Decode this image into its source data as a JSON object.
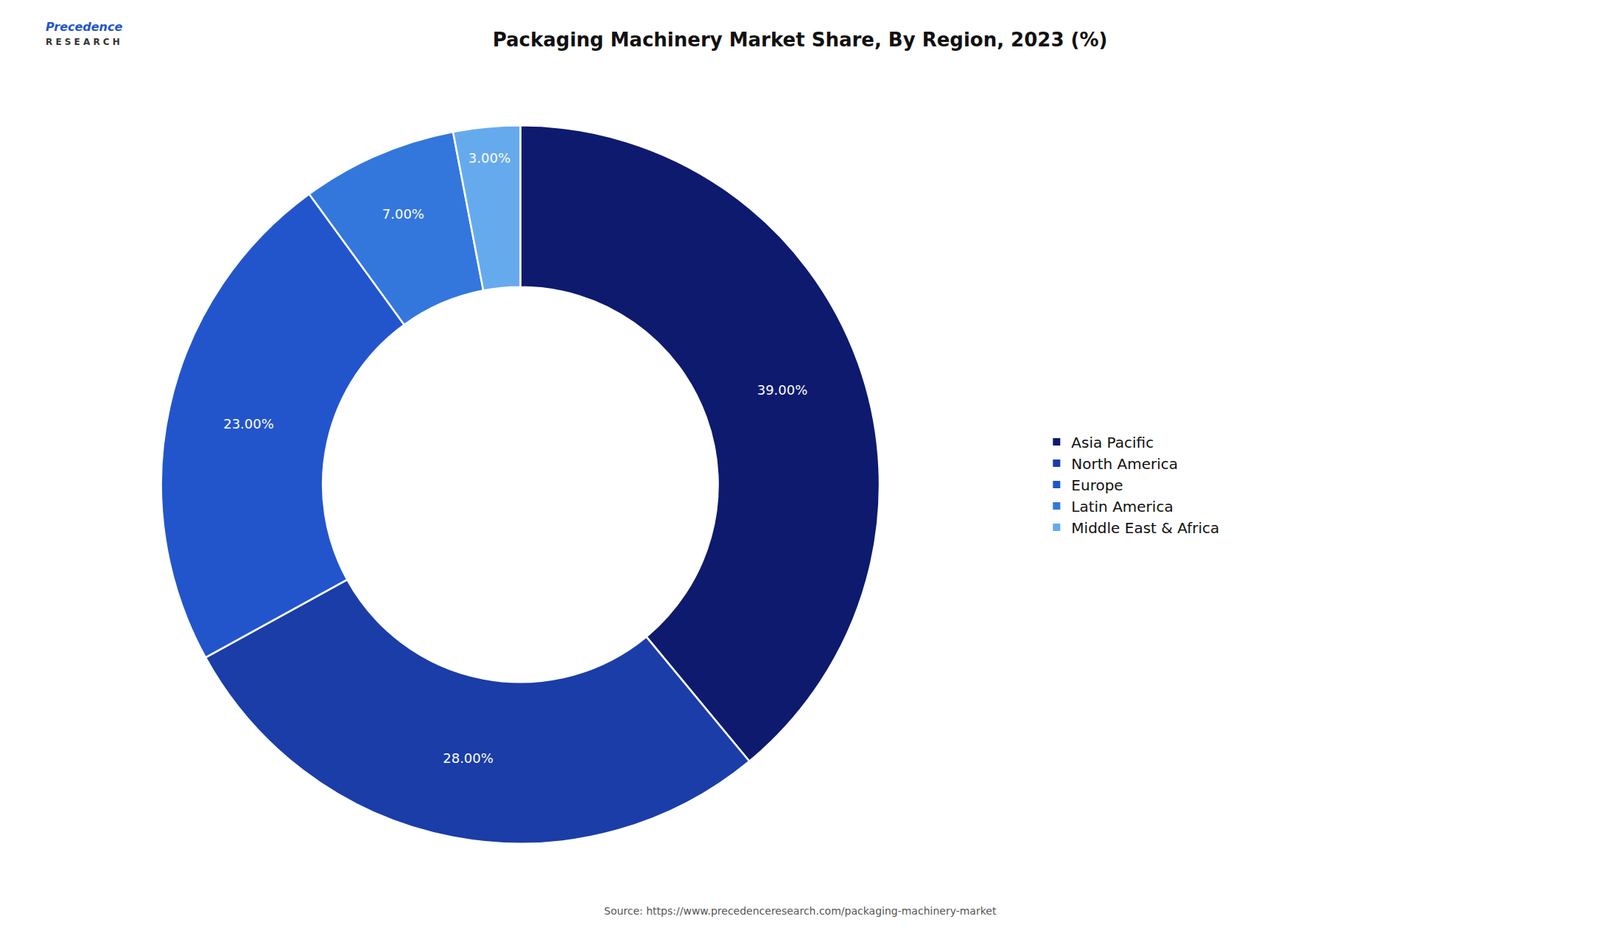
{
  "chart_data": {
    "type": "donut",
    "title": "Packaging Machinery Market Share, By Region, 2023 (%)",
    "categories": [
      "Asia Pacific",
      "North America",
      "Europe",
      "Latin America",
      "Middle East & Africa"
    ],
    "values": [
      39.0,
      28.0,
      23.0,
      7.0,
      3.0
    ],
    "value_labels": [
      "39.00%",
      "28.00%",
      "23.00%",
      "7.00%",
      "3.00%"
    ],
    "colors": [
      "#0d1a6e",
      "#1a3da8",
      "#2255cc",
      "#3377dd",
      "#66aaee"
    ],
    "data_labels": true,
    "legend": "right",
    "annotations": [
      "Source: https://www.precedenceresearch.com/packaging-machinery-market",
      "Precedence",
      "R E S E A R C H"
    ]
  }
}
